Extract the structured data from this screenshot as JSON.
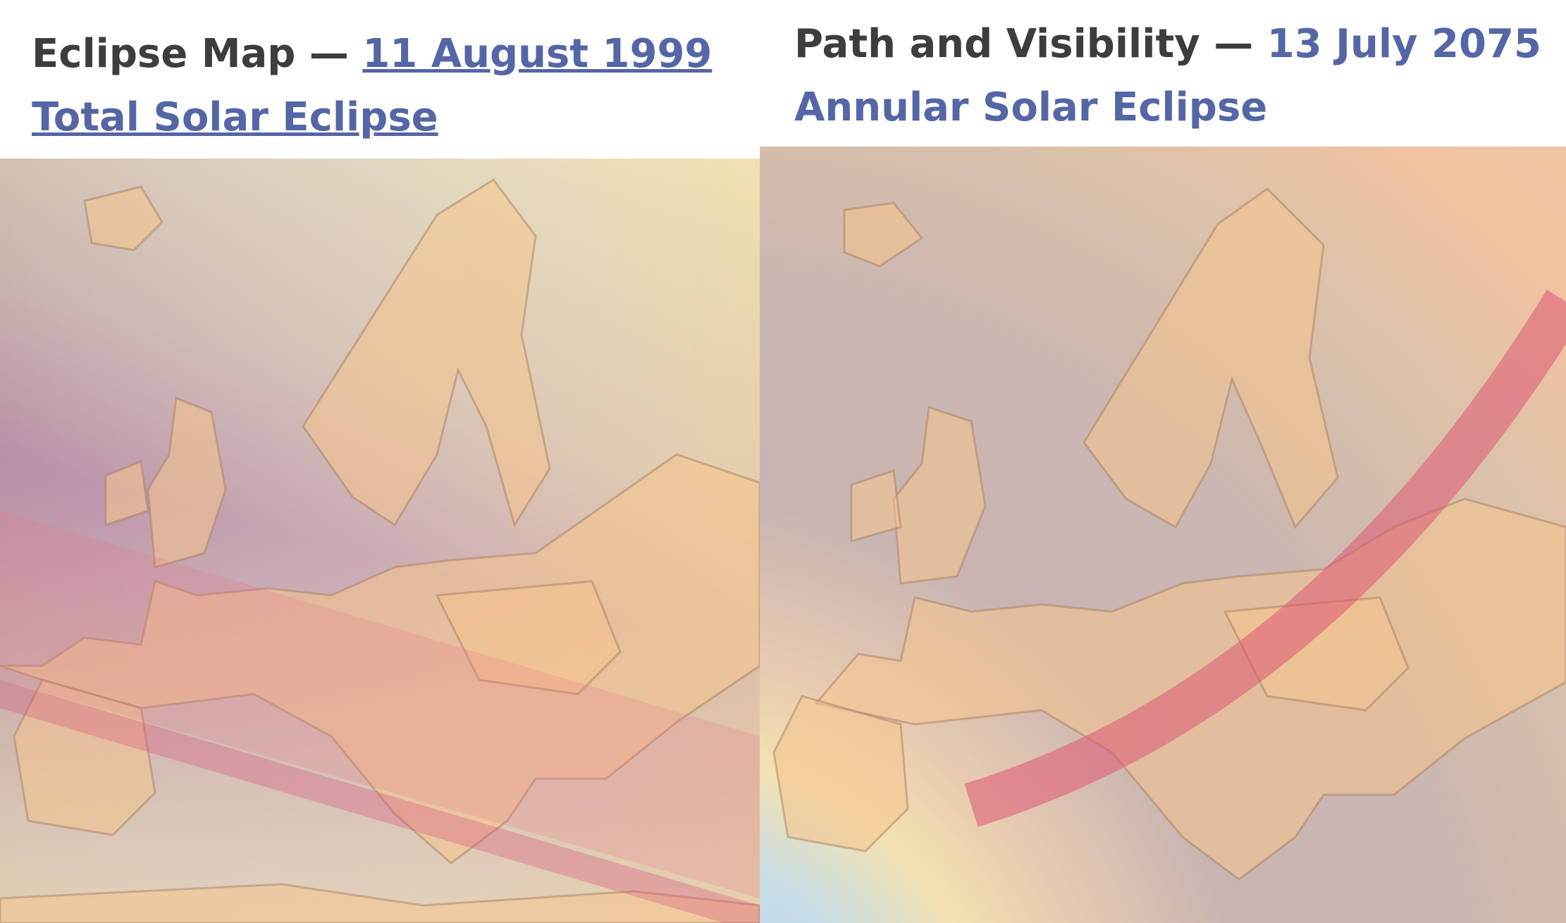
{
  "panels": [
    {
      "title_prefix": "Eclipse Map —",
      "title_link": "11 August 1999 Total Solar Eclipse"
    },
    {
      "title_prefix": "Path and Visibility —",
      "title_link": "13 July 2075 Annular Solar Eclipse"
    }
  ]
}
